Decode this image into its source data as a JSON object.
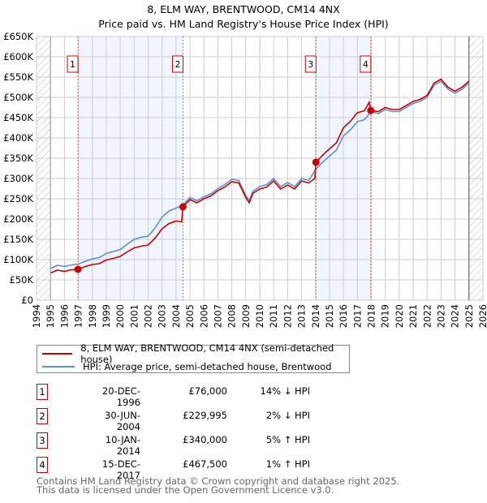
{
  "chart_data": {
    "type": "line",
    "title": "8, ELM WAY, BRENTWOOD, CM14 4NX",
    "subtitle": "Price paid vs. HM Land Registry's House Price Index (HPI)",
    "xlim": [
      1994,
      2026
    ],
    "ylim": [
      0,
      650000
    ],
    "x_ticks": [
      "1994",
      "1995",
      "1996",
      "1997",
      "1998",
      "1999",
      "2000",
      "2001",
      "2002",
      "2003",
      "2004",
      "2005",
      "2006",
      "2007",
      "2008",
      "2009",
      "2010",
      "2011",
      "2012",
      "2013",
      "2014",
      "2015",
      "2016",
      "2017",
      "2018",
      "2019",
      "2020",
      "2021",
      "2022",
      "2023",
      "2024",
      "2025",
      "2026"
    ],
    "y_ticks": [
      {
        "v": 0,
        "label": "£0"
      },
      {
        "v": 50000,
        "label": "£50K"
      },
      {
        "v": 100000,
        "label": "£100K"
      },
      {
        "v": 150000,
        "label": "£150K"
      },
      {
        "v": 200000,
        "label": "£200K"
      },
      {
        "v": 250000,
        "label": "£250K"
      },
      {
        "v": 300000,
        "label": "£300K"
      },
      {
        "v": 350000,
        "label": "£350K"
      },
      {
        "v": 400000,
        "label": "£400K"
      },
      {
        "v": 450000,
        "label": "£450K"
      },
      {
        "v": 500000,
        "label": "£500K"
      },
      {
        "v": 550000,
        "label": "£550K"
      },
      {
        "v": 600000,
        "label": "£600K"
      },
      {
        "v": 650000,
        "label": "£650K"
      }
    ],
    "grid": true,
    "data_range": [
      1995,
      2025
    ],
    "shaded_periods": [
      [
        1996.97,
        2004.5
      ],
      [
        2014.03,
        2017.96
      ]
    ],
    "series": [
      {
        "name": "8, ELM WAY, BRENTWOOD, CM14 4NX (semi-detached house)",
        "color": "#cc0000",
        "x": [
          1995,
          1995.5,
          1996,
          1996.5,
          1996.97,
          1997.5,
          1998,
          1998.5,
          1999,
          1999.5,
          2000,
          2000.5,
          2001,
          2001.5,
          2002,
          2002.5,
          2003,
          2003.5,
          2004,
          2004.4,
          2004.5,
          2005,
          2005.5,
          2006,
          2006.5,
          2007,
          2007.5,
          2008,
          2008.5,
          2009,
          2009.25,
          2009.5,
          2010,
          2010.5,
          2011,
          2011.5,
          2012,
          2012.5,
          2013,
          2013.5,
          2013.95,
          2014.03,
          2014.5,
          2015,
          2015.5,
          2016,
          2016.5,
          2017,
          2017.5,
          2017.85,
          2017.96,
          2018.5,
          2019,
          2019.5,
          2020,
          2020.5,
          2021,
          2021.5,
          2022,
          2022.5,
          2023,
          2023.5,
          2024,
          2024.5,
          2025
        ],
        "y": [
          67000,
          74000,
          71000,
          75000,
          76000,
          83000,
          88000,
          90000,
          99000,
          103000,
          108000,
          119000,
          129000,
          133000,
          136000,
          153000,
          176000,
          189000,
          195000,
          193000,
          229995,
          248000,
          240000,
          250000,
          257000,
          270000,
          279000,
          292000,
          289000,
          253000,
          240000,
          263000,
          274000,
          279000,
          294000,
          274000,
          284000,
          274000,
          294000,
          289000,
          300000,
          340000,
          357000,
          373000,
          388000,
          425000,
          441000,
          462000,
          467000,
          488000,
          467500,
          465000,
          475000,
          470000,
          470000,
          480000,
          490000,
          495000,
          505000,
          535000,
          545000,
          525000,
          515000,
          525000,
          540000
        ]
      },
      {
        "name": "HPI: Average price, semi-detached house, Brentwood",
        "color": "#5b8fd6",
        "x": [
          1995,
          1995.5,
          1996,
          1996.5,
          1997,
          1997.5,
          1998,
          1998.5,
          1999,
          1999.5,
          2000,
          2000.5,
          2001,
          2001.5,
          2002,
          2002.5,
          2003,
          2003.5,
          2004,
          2004.5,
          2005,
          2005.5,
          2006,
          2006.5,
          2007,
          2007.5,
          2008,
          2008.5,
          2009,
          2009.25,
          2009.5,
          2010,
          2010.5,
          2011,
          2011.5,
          2012,
          2012.5,
          2013,
          2013.5,
          2014,
          2014.5,
          2015,
          2015.5,
          2016,
          2016.5,
          2017,
          2017.5,
          2018,
          2018.5,
          2019,
          2019.5,
          2020,
          2020.5,
          2021,
          2021.5,
          2022,
          2022.5,
          2023,
          2023.5,
          2024,
          2024.5,
          2025
        ],
        "y": [
          78000,
          86000,
          83000,
          87000,
          89000,
          96000,
          102000,
          105000,
          115000,
          120000,
          125000,
          138000,
          150000,
          155000,
          158000,
          178000,
          205000,
          220000,
          227000,
          235000,
          253000,
          245000,
          255000,
          262000,
          275000,
          285000,
          298000,
          295000,
          258000,
          245000,
          268000,
          280000,
          285000,
          300000,
          280000,
          290000,
          280000,
          300000,
          295000,
          322000,
          340000,
          355000,
          370000,
          405000,
          420000,
          440000,
          445000,
          465000,
          460000,
          470000,
          465000,
          465000,
          475000,
          485000,
          490000,
          500000,
          530000,
          540000,
          520000,
          510000,
          520000,
          535000
        ]
      }
    ],
    "sales": [
      {
        "num": "1",
        "x": 1996.97,
        "y": 76000,
        "date": "20-DEC-1996",
        "price": "£76,000",
        "rel": "14% ↓ HPI"
      },
      {
        "num": "2",
        "x": 2004.5,
        "y": 229995,
        "date": "30-JUN-2004",
        "price": "£229,995",
        "rel": "2% ↓ HPI"
      },
      {
        "num": "3",
        "x": 2014.03,
        "y": 340000,
        "date": "10-JAN-2014",
        "price": "£340,000",
        "rel": "5% ↑ HPI"
      },
      {
        "num": "4",
        "x": 2017.96,
        "y": 467500,
        "date": "15-DEC-2017",
        "price": "£467,500",
        "rel": "1% ↑ HPI"
      }
    ]
  },
  "legend": {
    "property": "8, ELM WAY, BRENTWOOD, CM14 4NX (semi-detached house)",
    "hpi": "HPI: Average price, semi-detached house, Brentwood"
  },
  "footer": {
    "line1": "Contains HM Land Registry data © Crown copyright and database right 2025.",
    "line2": "This data is licensed under the Open Government Licence v3.0."
  }
}
